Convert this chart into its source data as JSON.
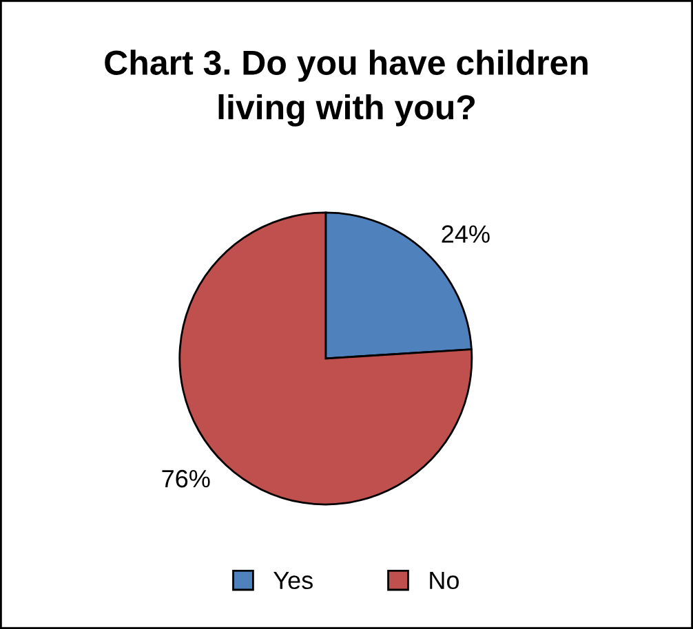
{
  "chart_data": {
    "type": "pie",
    "title": "Chart 3. Do you have children living with you?",
    "categories": [
      "Yes",
      "No"
    ],
    "values": [
      24,
      76
    ],
    "colors": [
      "#4f81bd",
      "#c0504d"
    ],
    "value_labels": [
      "24%",
      "76%"
    ],
    "legend": "bottom"
  }
}
